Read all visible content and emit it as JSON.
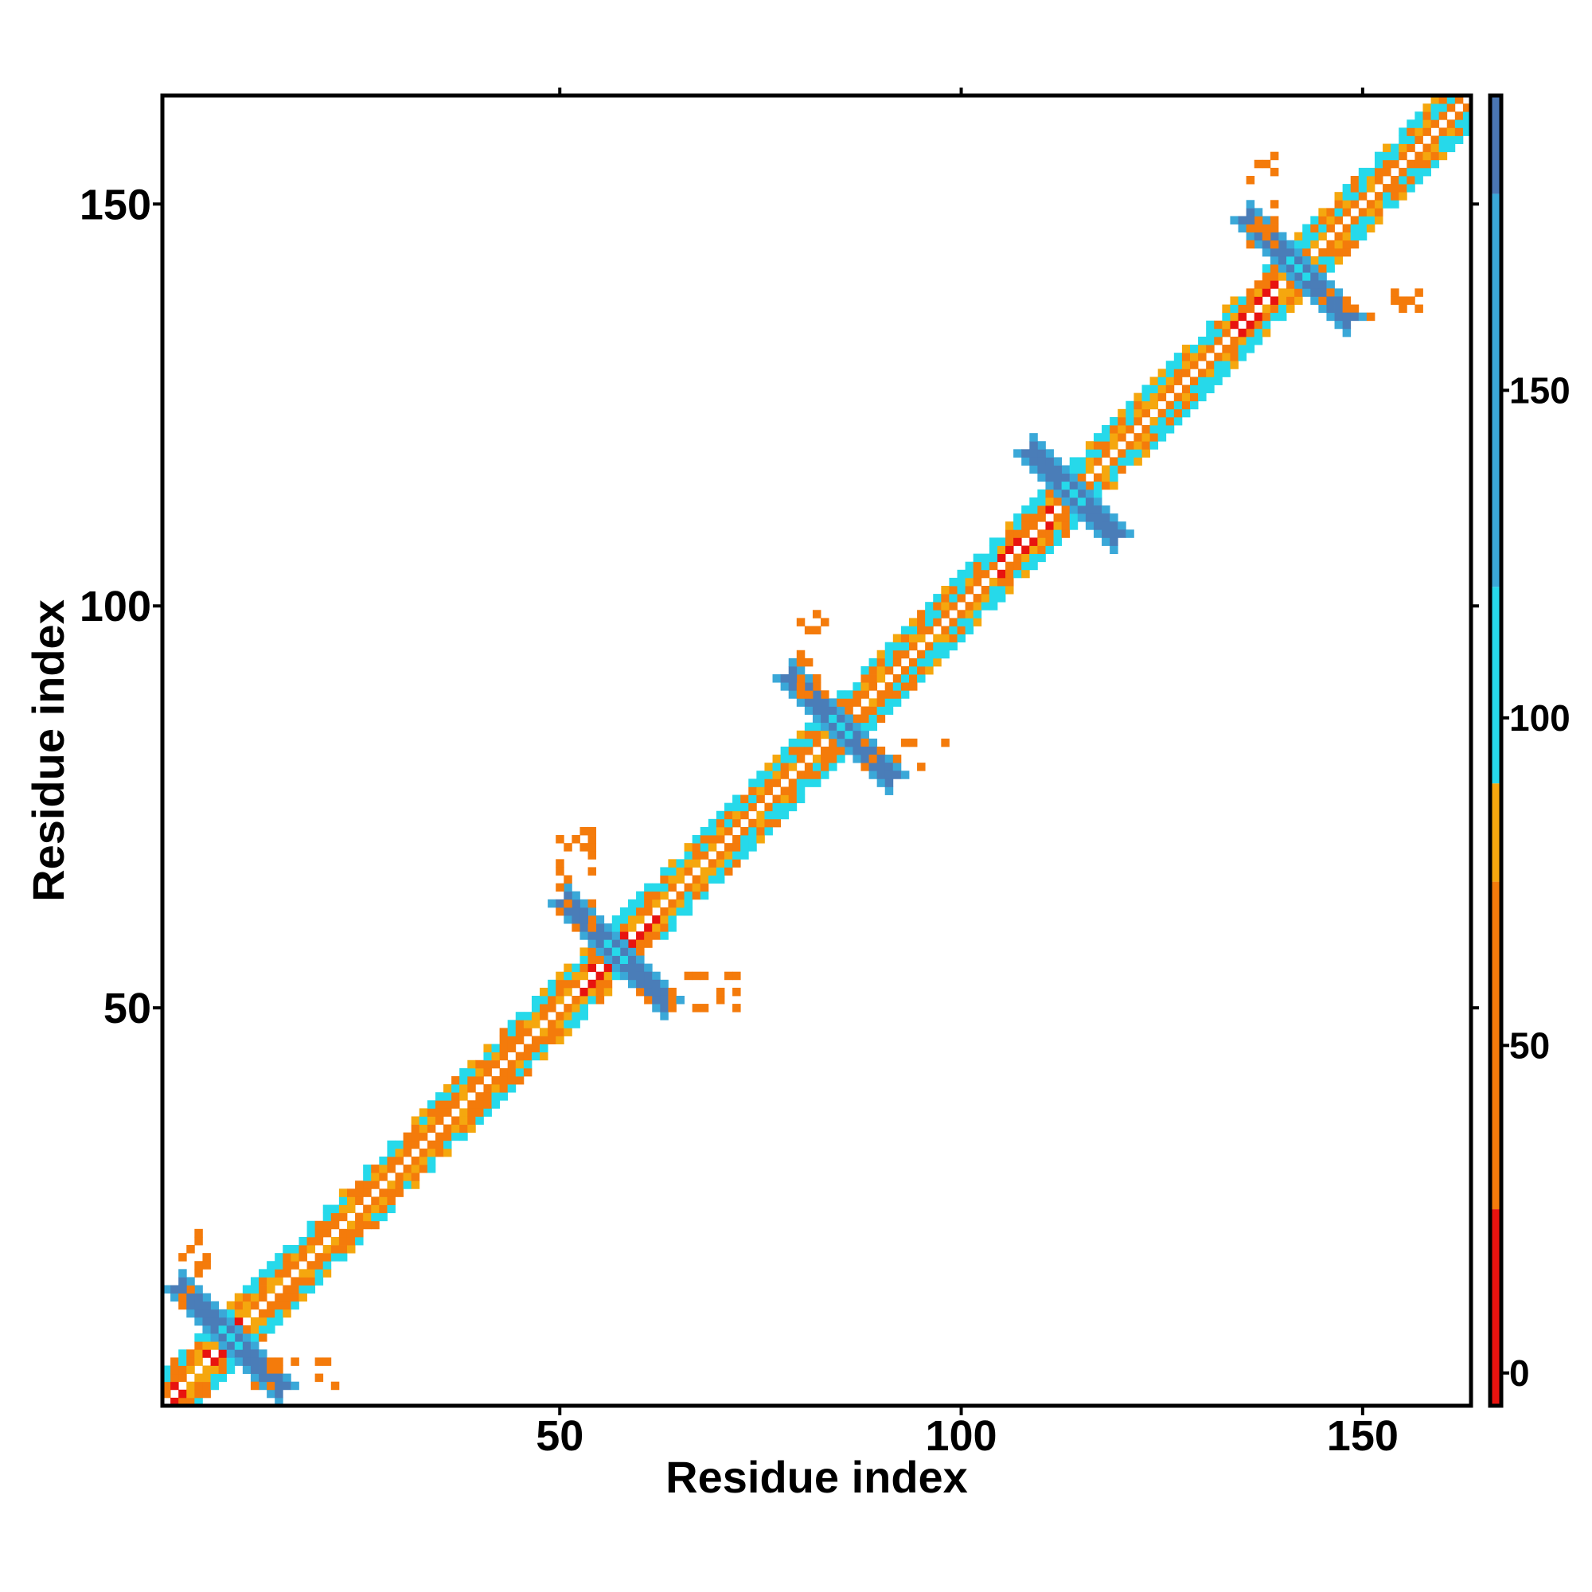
{
  "chart_data": {
    "type": "heatmap",
    "title": "",
    "xlabel": "Residue index",
    "ylabel": "Residue index",
    "xlim": [
      0.5,
      163.5
    ],
    "ylim": [
      0.5,
      163.5
    ],
    "x_ticks": [
      50,
      100,
      150
    ],
    "y_ticks": [
      50,
      100,
      150
    ],
    "colorbar": {
      "ticks": [
        0,
        50,
        100,
        150
      ],
      "range": [
        -5,
        195
      ],
      "bands": [
        {
          "from": -5,
          "to": 25,
          "color": "#e8130f"
        },
        {
          "from": 25,
          "to": 75,
          "color": "#f47b0b"
        },
        {
          "from": 75,
          "to": 90,
          "color": "#f5a70e"
        },
        {
          "from": 90,
          "to": 120,
          "color": "#26d9ea"
        },
        {
          "from": 120,
          "to": 180,
          "color": "#3aa8d8"
        },
        {
          "from": 180,
          "to": 195,
          "color": "#4a76b4"
        }
      ]
    },
    "colors": {
      "red": "#e8130f",
      "orange": "#f47b0b",
      "amber": "#f5a70e",
      "cyan": "#26d9ea",
      "sky": "#3aa8d8",
      "steel": "#4a7db8"
    },
    "diagonal_band": {
      "from": 1,
      "to": 163,
      "half_width": 4
    },
    "domain_segments": [
      {
        "start": 1,
        "end": 10,
        "dominant": "red"
      },
      {
        "start": 10,
        "end": 52,
        "dominant": "orange"
      },
      {
        "start": 52,
        "end": 62,
        "dominant": "red"
      },
      {
        "start": 62,
        "end": 82,
        "dominant": "cyan"
      },
      {
        "start": 82,
        "end": 90,
        "dominant": "orange"
      },
      {
        "start": 90,
        "end": 104,
        "dominant": "cyan"
      },
      {
        "start": 104,
        "end": 112,
        "dominant": "red"
      },
      {
        "start": 112,
        "end": 133,
        "dominant": "cyan"
      },
      {
        "start": 133,
        "end": 140,
        "dominant": "red"
      },
      {
        "start": 140,
        "end": 163,
        "dominant": "cyan"
      }
    ],
    "cross_motifs": [
      {
        "center": 9,
        "arm": 6
      },
      {
        "center": 57,
        "arm": 6
      },
      {
        "center": 85,
        "arm": 6
      },
      {
        "center": 114,
        "arm": 5
      },
      {
        "center": 142,
        "arm": 6
      }
    ],
    "secondary_patches": [
      {
        "x": [
          12,
          22
        ],
        "y": [
          3,
          6
        ],
        "color": "orange"
      },
      {
        "x": [
          3,
          6
        ],
        "y": [
          12,
          22
        ],
        "color": "orange"
      },
      {
        "x": [
          60,
          72
        ],
        "y": [
          50,
          54
        ],
        "color": "orange"
      },
      {
        "x": [
          50,
          54
        ],
        "y": [
          60,
          72
        ],
        "color": "orange"
      },
      {
        "x": [
          88,
          99
        ],
        "y": [
          80,
          83
        ],
        "color": "orange"
      },
      {
        "x": [
          80,
          83
        ],
        "y": [
          88,
          99
        ],
        "color": "orange"
      },
      {
        "x": [
          145,
          157
        ],
        "y": [
          136,
          139
        ],
        "color": "orange"
      },
      {
        "x": [
          136,
          139
        ],
        "y": [
          145,
          157
        ],
        "color": "orange"
      }
    ]
  }
}
